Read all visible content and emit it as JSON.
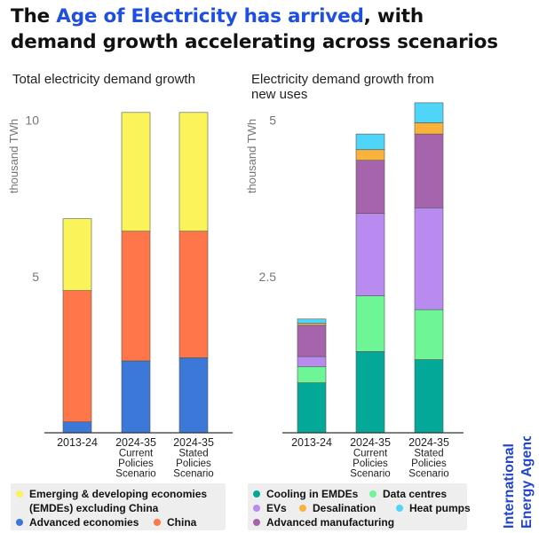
{
  "headline": {
    "pre": "The ",
    "highlight": "Age of Electricity has arrived",
    "post": ", with demand growth accelerating across scenarios"
  },
  "colors": {
    "highlight": "#1f4fe0",
    "emde": "#fbf35a",
    "china": "#fe7649",
    "advanced": "#3b78d8",
    "cooling": "#04a899",
    "data_centres": "#6df596",
    "evs": "#b98af0",
    "desalination": "#f9b33b",
    "heat_pumps": "#4fd5f8",
    "adv_manufacturing": "#a664ad",
    "iea": "#2244cc"
  },
  "chart_data": [
    {
      "type": "bar",
      "stacked": true,
      "title": "Total electricity demand growth",
      "ylabel": "thousand TWh",
      "ylim": [
        0,
        10.5
      ],
      "yticks": [
        5,
        10
      ],
      "categories": [
        [
          "2013-24"
        ],
        [
          "2024-35",
          "Current",
          "Policies",
          "Scenario"
        ],
        [
          "2024-35",
          "Stated",
          "Policies",
          "Scenario"
        ]
      ],
      "series": [
        {
          "name": "Advanced economies",
          "color_key": "advanced",
          "values": [
            0.35,
            2.3,
            2.4
          ]
        },
        {
          "name": "China",
          "color_key": "china",
          "values": [
            4.2,
            4.15,
            4.05
          ]
        },
        {
          "name": "Emerging & developing economies (EMDEs) excluding China",
          "color_key": "emde",
          "values": [
            2.3,
            3.8,
            3.8
          ]
        }
      ]
    },
    {
      "type": "bar",
      "stacked": true,
      "title": "Electricity demand growth from new uses",
      "ylabel": "thousand TWh",
      "ylim": [
        0,
        5.25
      ],
      "yticks": [
        2.5,
        5
      ],
      "categories": [
        [
          "2013-24"
        ],
        [
          "2024-35",
          "Current",
          "Policies",
          "Scenario"
        ],
        [
          "2024-35",
          "Stated",
          "Policies",
          "Scenario"
        ]
      ],
      "series": [
        {
          "name": "Cooling in EMDEs",
          "color_key": "cooling",
          "values": [
            0.8,
            1.3,
            1.17
          ]
        },
        {
          "name": "Data centres",
          "color_key": "data_centres",
          "values": [
            0.26,
            0.89,
            0.8
          ]
        },
        {
          "name": "EVs",
          "color_key": "evs",
          "values": [
            0.16,
            1.32,
            1.63
          ]
        },
        {
          "name": "Advanced manufacturing",
          "color_key": "adv_manufacturing",
          "values": [
            0.5,
            0.85,
            1.18
          ]
        },
        {
          "name": "Desalination",
          "color_key": "desalination",
          "values": [
            0.03,
            0.17,
            0.18
          ]
        },
        {
          "name": "Heat pumps",
          "color_key": "heat_pumps",
          "values": [
            0.07,
            0.25,
            0.32
          ]
        }
      ]
    }
  ],
  "legend_left": {
    "emde": "Emerging & developing economies (EMDEs) excluding China",
    "advanced": "Advanced economies",
    "china": "China"
  },
  "legend_right": {
    "cooling": "Cooling in EMDEs",
    "data_centres": "Data centres",
    "evs": "EVs",
    "desalination": "Desalination",
    "heat_pumps": "Heat pumps",
    "adv_manufacturing": "Advanced manufacturing"
  },
  "logo": {
    "line1": "International",
    "line2": "Energy Agency"
  }
}
